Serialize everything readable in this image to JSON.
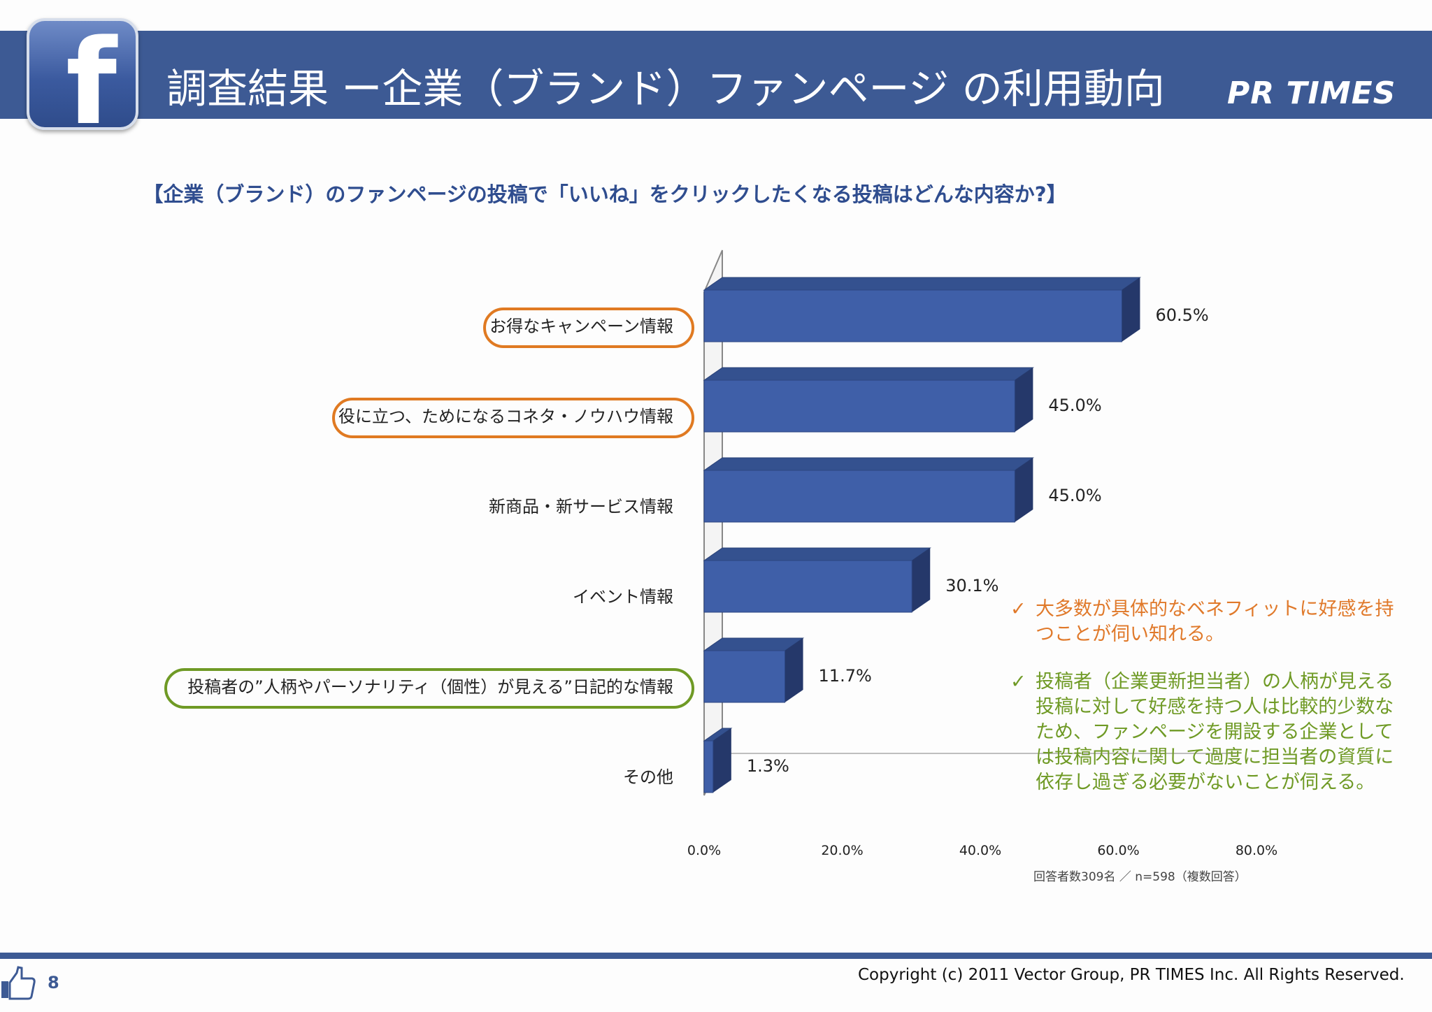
{
  "header": {
    "fb_logo_letter": "f",
    "title": "調査結果 ー企業（ブランド）ファンページ の利用動向",
    "brand": "PR TIMES"
  },
  "question": "【企業（ブランド）のファンページの投稿で「いいね」をクリックしたくなる投稿はどんな内容か?】",
  "chart_data": {
    "type": "bar",
    "orientation": "horizontal",
    "style": "3d",
    "categories": [
      "お得なキャンペーン情報",
      "役に立つ、ためになるコネタ・ノウハウ情報",
      "新商品・新サービス情報",
      "イベント情報",
      "投稿者の”人柄やパーソナリティ（個性）が見える”日記的な情報",
      "その他"
    ],
    "values": [
      60.5,
      45.0,
      45.0,
      30.1,
      11.7,
      1.3
    ],
    "value_labels": [
      "60.5%",
      "45.0%",
      "45.0%",
      "30.1%",
      "11.7%",
      "1.3%"
    ],
    "xlim": [
      0,
      80
    ],
    "x_ticks": [
      "0.0%",
      "20.0%",
      "40.0%",
      "60.0%",
      "80.0%"
    ],
    "highlights": [
      {
        "category_index": 0,
        "color": "#e07a22"
      },
      {
        "category_index": 1,
        "color": "#e07a22"
      },
      {
        "category_index": 4,
        "color": "#6f9a25"
      }
    ],
    "bar_color": "#3f5fa8"
  },
  "respondents_note": "回答者数309名 ／ n=598（複数回答）",
  "notes": [
    {
      "check": "✓",
      "text": "大多数が具体的なベネフィットに好感を持つことが伺い知れる。",
      "color": "#e0792a"
    },
    {
      "check": "✓",
      "text": "投稿者（企業更新担当者）の人柄が見える投稿に対して好感を持つ人は比較的少数なため、ファンページを開設する企業としては投稿内容に関して過度に担当者の資質に依存し過ぎる必要がないことが伺える。",
      "color": "#6f9a25"
    }
  ],
  "footer": {
    "page_number": "8",
    "copyright": "Copyright (c) 2011 Vector Group, PR TIMES Inc. All Rights Reserved."
  }
}
